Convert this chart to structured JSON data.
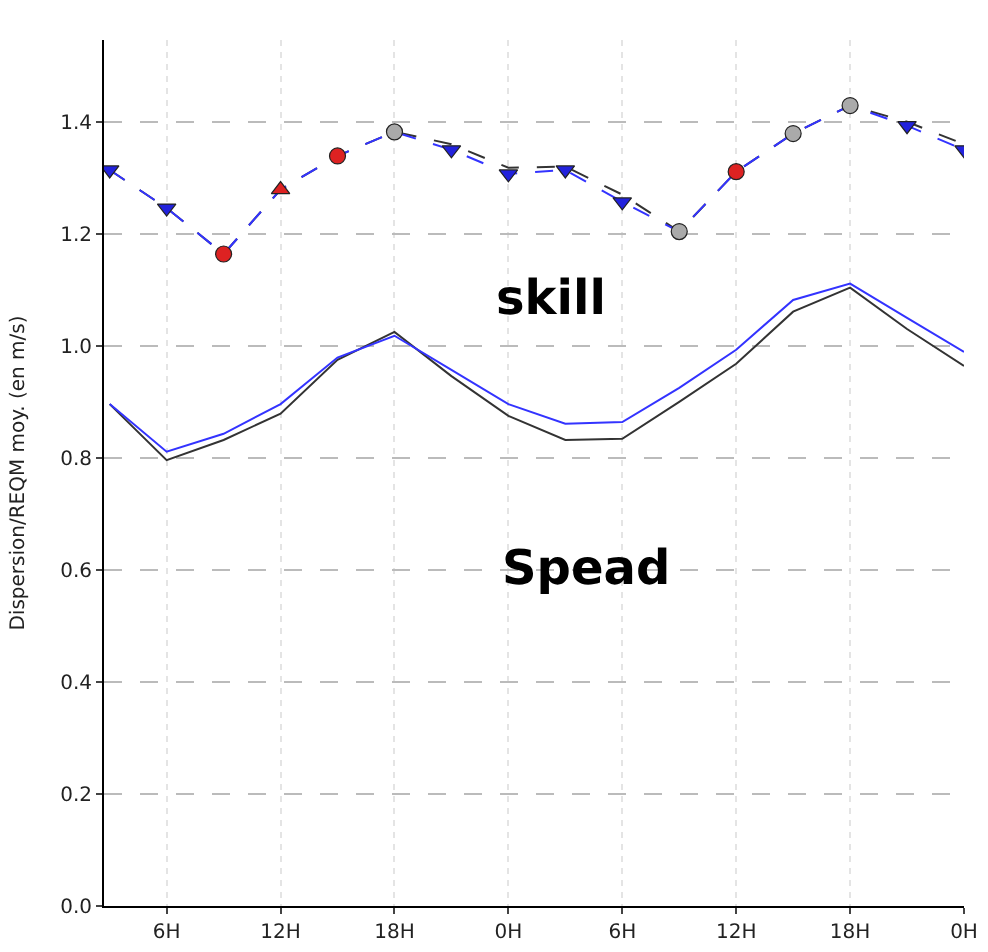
{
  "chart_data": {
    "type": "line",
    "ylabel": "Dispersion/REQM moy. (en m/s)",
    "ylim": [
      0,
      1.546
    ],
    "categories": [
      null,
      "6H",
      null,
      "12H",
      null,
      "18H",
      null,
      "0H",
      null,
      "6H",
      null,
      "12H",
      null,
      "18H",
      null,
      "0H"
    ],
    "yticks": [
      {
        "value": 0,
        "label": "0.0"
      },
      {
        "value": 0.2,
        "label": "0.2"
      },
      {
        "value": 0.4,
        "label": "0.4"
      },
      {
        "value": 0.6,
        "label": "0.6"
      },
      {
        "value": 0.8,
        "label": "0.8"
      },
      {
        "value": 1.0,
        "label": "1.0"
      },
      {
        "value": 1.2,
        "label": "1.2"
      },
      {
        "value": 1.4,
        "label": "1.4"
      }
    ],
    "grid": true,
    "marker": "none",
    "annotations": [
      "skill",
      "Spead"
    ],
    "series": [
      {
        "color": "#333333",
        "line_style": "dashed",
        "values": [
          1.314,
          1.246,
          1.164,
          1.279,
          1.339,
          1.382,
          1.36,
          1.318,
          1.32,
          1.27,
          1.204,
          1.311,
          1.379,
          1.429,
          1.4,
          1.36
        ]
      },
      {
        "color": "#3333ff",
        "line_style": "dashed",
        "values": [
          1.314,
          1.246,
          1.164,
          1.279,
          1.339,
          1.382,
          1.35,
          1.307,
          1.314,
          1.257,
          1.204,
          1.311,
          1.379,
          1.429,
          1.393,
          1.35
        ]
      },
      {
        "color": "#333333",
        "line_style": "solid",
        "values": [
          0.896,
          0.796,
          0.832,
          0.879,
          0.975,
          1.025,
          0.946,
          0.875,
          0.832,
          0.834,
          0.9,
          0.968,
          1.061,
          1.104,
          1.03,
          0.964
        ]
      },
      {
        "color": "#3333ff",
        "line_style": "solid",
        "values": [
          0.896,
          0.811,
          0.843,
          0.896,
          0.979,
          1.018,
          0.957,
          0.896,
          0.861,
          0.864,
          0.925,
          0.993,
          1.082,
          1.111,
          1.05,
          0.989
        ]
      },
      {
        "type": "scatter",
        "marker": "triangle-down",
        "color": "#2222dd",
        "values": [
          1.314,
          1.246,
          null,
          null,
          null,
          null,
          1.35,
          1.307,
          1.314,
          1.257,
          null,
          null,
          null,
          null,
          1.393,
          1.35
        ]
      },
      {
        "type": "scatter",
        "marker": "circle",
        "color": "#dd2222",
        "values": [
          null,
          null,
          1.164,
          null,
          1.339,
          null,
          null,
          null,
          null,
          null,
          null,
          1.311,
          null,
          null,
          null,
          null
        ]
      },
      {
        "type": "scatter",
        "marker": "triangle",
        "color": "#dd2222",
        "values": [
          null,
          null,
          null,
          1.279,
          null,
          null,
          null,
          null,
          null,
          null,
          null,
          null,
          null,
          null,
          null,
          null
        ]
      },
      {
        "type": "scatter",
        "marker": "circle",
        "color": "#aaaaaa",
        "values": [
          null,
          null,
          null,
          null,
          null,
          1.382,
          null,
          null,
          null,
          null,
          1.204,
          null,
          1.379,
          1.429,
          null,
          null
        ]
      }
    ]
  }
}
